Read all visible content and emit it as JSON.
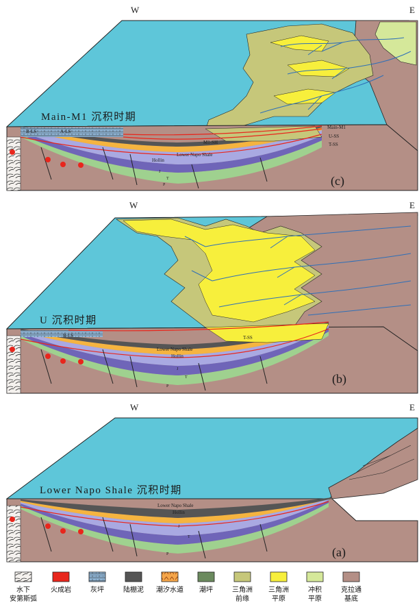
{
  "panels": [
    {
      "id": "c",
      "title": "Main-M1 沉积时期",
      "letter": "(c)",
      "compass_w": "W",
      "compass_e": "E",
      "labels": {
        "b_ls": "B-LS",
        "a_ls": "A-LS",
        "main_m1": "Main-M1",
        "m1_sh": "M1-SH",
        "u_ss": "U-SS",
        "t_ss": "T-SS",
        "lower_napo": "Lower Napo Shale",
        "hollin": "Hollin",
        "j": "J",
        "t": "T",
        "p": "P"
      }
    },
    {
      "id": "b",
      "title": "U 沉积时期",
      "letter": "(b)",
      "compass_w": "W",
      "compass_e": "E",
      "labels": {
        "b_ls": "B-LS",
        "t_ss": "T-SS",
        "lower_napo": "Lower Napo Shale",
        "hollin": "Hollin",
        "j": "J",
        "t": "T",
        "p": "P"
      }
    },
    {
      "id": "a",
      "title": "Lower Napo Shale 沉积时期",
      "letter": "(a)",
      "compass_w": "W",
      "compass_e": "E",
      "labels": {
        "lower_napo": "Lower Napo Shale",
        "hollin": "Hollin",
        "j": "J",
        "t": "T",
        "p": "P"
      }
    }
  ],
  "legend": [
    {
      "label1": "水下",
      "label2": "安第斯弧",
      "swatch": "arc"
    },
    {
      "label1": "火成岩",
      "label2": "",
      "swatch": "igneous"
    },
    {
      "label1": "灰坪",
      "label2": "",
      "swatch": "limestone"
    },
    {
      "label1": "陆棚泥",
      "label2": "",
      "swatch": "shelfmud"
    },
    {
      "label1": "潮汐水道",
      "label2": "",
      "swatch": "tidal"
    },
    {
      "label1": "潮坪",
      "label2": "",
      "swatch": "tidalflat"
    },
    {
      "label1": "三角洲",
      "label2": "前缘",
      "swatch": "deltafront"
    },
    {
      "label1": "三角洲",
      "label2": "平原",
      "swatch": "deltaplain"
    },
    {
      "label1": "冲积",
      "label2": "平原",
      "swatch": "alluvial"
    },
    {
      "label1": "克拉通",
      "label2": "基底",
      "swatch": "craton"
    }
  ],
  "colors": {
    "sea": "#5ec6d9",
    "basement": "#b48f86",
    "delta_front": "#c6c77a",
    "delta_plain": "#f7ef3c",
    "alluvial": "#d5e89a",
    "shelf_mud": "#555555",
    "hollin": "#f5b440",
    "jurassic": "#a9a9e2",
    "triassic": "#6f65b8",
    "permian": "#9fd18f",
    "limestone": "#8fb5d6",
    "unconformity": "#e8261c",
    "channel": "#2d6fb8"
  }
}
